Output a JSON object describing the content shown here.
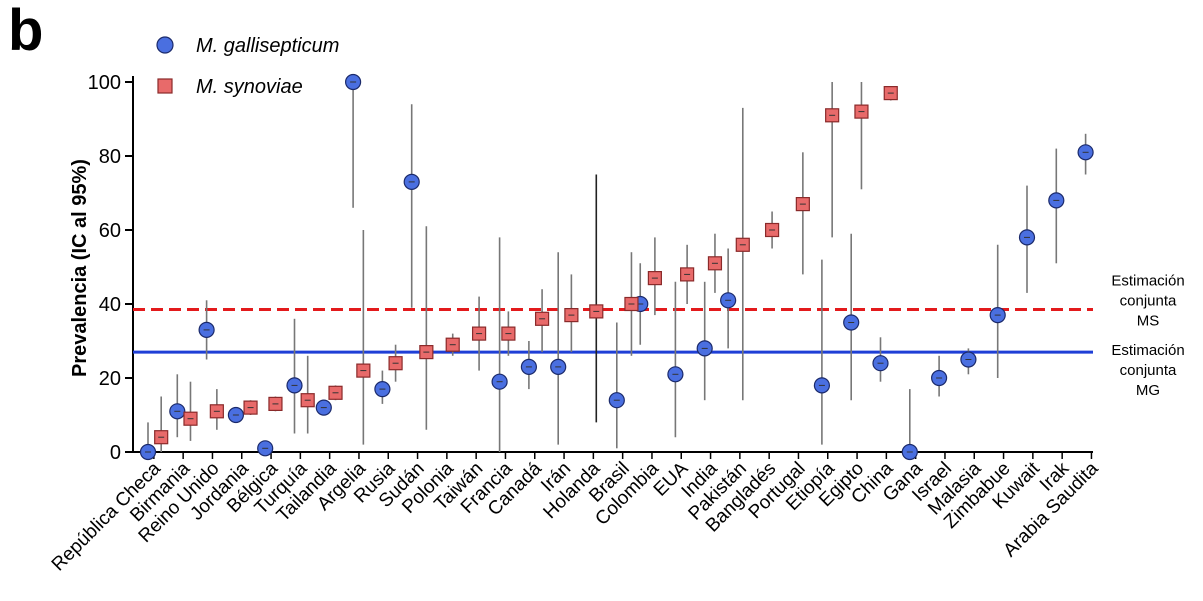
{
  "panel_label": "b",
  "chart_data": {
    "type": "scatter",
    "ylabel": "Prevalencia (IC al 95%)",
    "xlabel": "",
    "ylim": [
      0,
      100
    ],
    "yticks": [
      0,
      20,
      40,
      60,
      80,
      100
    ],
    "categories": [
      "República Checa",
      "Birmania",
      "Reino Unido",
      "Jordania",
      "Bélgica",
      "Turquía",
      "Tailandia",
      "Argelia",
      "Rusia",
      "Sudán",
      "Polonia",
      "Taiwán",
      "Francia",
      "Canadá",
      "Irán",
      "Holanda",
      "Brasil",
      "Colombia",
      "EUA",
      "India",
      "Pakistán",
      "Bangladés",
      "Portugal",
      "Etiopía",
      "Egipto",
      "China",
      "Gana",
      "Israel",
      "Malasia",
      "Zimbabue",
      "Kuwait",
      "Irak",
      "Arabia Saudita"
    ],
    "legend": {
      "position": "top-left"
    },
    "series": [
      {
        "name": "M. gallisepticum",
        "marker": "circle",
        "color": "#4a6fe0",
        "points": [
          {
            "cat": 0,
            "x": 0.0,
            "y": 0,
            "lo": 0,
            "hi": 8
          },
          {
            "cat": 1,
            "x": 0.0,
            "y": 11,
            "lo": 4,
            "hi": 21
          },
          {
            "cat": 2,
            "x": 0.0,
            "y": 33,
            "lo": 25,
            "hi": 41
          },
          {
            "cat": 3,
            "x": 0.0,
            "y": 10,
            "lo": 8,
            "hi": 12
          },
          {
            "cat": 4,
            "x": 0.0,
            "y": 1,
            "lo": 0,
            "hi": 2
          },
          {
            "cat": 5,
            "x": 0.0,
            "y": 18,
            "lo": 5,
            "hi": 36
          },
          {
            "cat": 6,
            "x": 0.0,
            "y": 12,
            "lo": 10,
            "hi": 14
          },
          {
            "cat": 7,
            "x": 0.0,
            "y": 100,
            "lo": 66,
            "hi": 100
          },
          {
            "cat": 8,
            "x": 0.0,
            "y": 17,
            "lo": 13,
            "hi": 22
          },
          {
            "cat": 9,
            "x": 0.0,
            "y": 73,
            "lo": 39,
            "hi": 94
          },
          {
            "cat": 12,
            "x": 0.0,
            "y": 19,
            "lo": 0,
            "hi": 58
          },
          {
            "cat": 13,
            "x": 0.0,
            "y": 23,
            "lo": 17,
            "hi": 30
          },
          {
            "cat": 14,
            "x": 0.0,
            "y": 23,
            "lo": 2,
            "hi": 54
          },
          {
            "cat": 16,
            "x": 0.0,
            "y": 14,
            "lo": 1,
            "hi": 35
          },
          {
            "cat": 17,
            "x": -0.2,
            "y": 40,
            "lo": 29,
            "hi": 51
          },
          {
            "cat": 18,
            "x": 0.0,
            "y": 21,
            "lo": 4,
            "hi": 46
          },
          {
            "cat": 19,
            "x": 0.0,
            "y": 28,
            "lo": 14,
            "hi": 46
          },
          {
            "cat": 20,
            "x": -0.2,
            "y": 41,
            "lo": 28,
            "hi": 55
          },
          {
            "cat": 23,
            "x": 0.0,
            "y": 18,
            "lo": 2,
            "hi": 52
          },
          {
            "cat": 24,
            "x": 0.0,
            "y": 35,
            "lo": 14,
            "hi": 59
          },
          {
            "cat": 25,
            "x": 0.0,
            "y": 24,
            "lo": 19,
            "hi": 31
          },
          {
            "cat": 26,
            "x": 0.0,
            "y": 0,
            "lo": 0,
            "hi": 17
          },
          {
            "cat": 27,
            "x": 0.0,
            "y": 20,
            "lo": 15,
            "hi": 26
          },
          {
            "cat": 28,
            "x": 0.0,
            "y": 25,
            "lo": 21,
            "hi": 28
          },
          {
            "cat": 29,
            "x": 0.0,
            "y": 37,
            "lo": 20,
            "hi": 56
          },
          {
            "cat": 30,
            "x": 0.0,
            "y": 58,
            "lo": 43,
            "hi": 72
          },
          {
            "cat": 31,
            "x": 0.0,
            "y": 68,
            "lo": 51,
            "hi": 82
          },
          {
            "cat": 32,
            "x": 0.0,
            "y": 81,
            "lo": 75,
            "hi": 86
          }
        ]
      },
      {
        "name": "M. synoviae",
        "marker": "square",
        "color": "#e86a6a",
        "points": [
          {
            "cat": 0,
            "x": 0.45,
            "y": 4,
            "lo": 0,
            "hi": 15
          },
          {
            "cat": 1,
            "x": 0.45,
            "y": 9,
            "lo": 3,
            "hi": 19
          },
          {
            "cat": 2,
            "x": 0.35,
            "y": 11,
            "lo": 6,
            "hi": 17
          },
          {
            "cat": 3,
            "x": 0.5,
            "y": 12,
            "lo": 10,
            "hi": 14
          },
          {
            "cat": 4,
            "x": 0.35,
            "y": 13,
            "lo": 11,
            "hi": 15
          },
          {
            "cat": 5,
            "x": 0.45,
            "y": 14,
            "lo": 5,
            "hi": 26
          },
          {
            "cat": 6,
            "x": 0.4,
            "y": 16,
            "lo": 14,
            "hi": 18
          },
          {
            "cat": 7,
            "x": 0.35,
            "y": 22,
            "lo": 2,
            "hi": 60
          },
          {
            "cat": 8,
            "x": 0.45,
            "y": 24,
            "lo": 19,
            "hi": 29
          },
          {
            "cat": 9,
            "x": 0.5,
            "y": 27,
            "lo": 6,
            "hi": 61
          },
          {
            "cat": 10,
            "x": 0.4,
            "y": 29,
            "lo": 26,
            "hi": 32
          },
          {
            "cat": 11,
            "x": 0.3,
            "y": 32,
            "lo": 22,
            "hi": 42
          },
          {
            "cat": 12,
            "x": 0.3,
            "y": 32,
            "lo": 26,
            "hi": 38
          },
          {
            "cat": 13,
            "x": 0.45,
            "y": 36,
            "lo": 27,
            "hi": 44
          },
          {
            "cat": 14,
            "x": 0.45,
            "y": 37,
            "lo": 27,
            "hi": 48
          },
          {
            "cat": 15,
            "x": 0.3,
            "y": 38,
            "lo": 8,
            "hi": 75
          },
          {
            "cat": 16,
            "x": 0.5,
            "y": 40,
            "lo": 26,
            "hi": 54
          },
          {
            "cat": 17,
            "x": 0.3,
            "y": 47,
            "lo": 37,
            "hi": 58
          },
          {
            "cat": 18,
            "x": 0.4,
            "y": 48,
            "lo": 40,
            "hi": 56
          },
          {
            "cat": 19,
            "x": 0.35,
            "y": 51,
            "lo": 43,
            "hi": 59
          },
          {
            "cat": 20,
            "x": 0.3,
            "y": 56,
            "lo": 14,
            "hi": 93
          },
          {
            "cat": 21,
            "x": 0.3,
            "y": 60,
            "lo": 55,
            "hi": 65
          },
          {
            "cat": 22,
            "x": 0.35,
            "y": 67,
            "lo": 48,
            "hi": 81
          },
          {
            "cat": 23,
            "x": 0.35,
            "y": 91,
            "lo": 58,
            "hi": 100
          },
          {
            "cat": 24,
            "x": 0.35,
            "y": 92,
            "lo": 71,
            "hi": 100
          },
          {
            "cat": 25,
            "x": 0.35,
            "y": 97,
            "lo": 95,
            "hi": 98
          }
        ]
      }
    ],
    "reference_lines": [
      {
        "label_lines": [
          "Estimación",
          "conjunta",
          "MS"
        ],
        "y": 38.5,
        "style": "dashed",
        "color": "#e31a1c"
      },
      {
        "label_lines": [
          "Estimación",
          "conjunta",
          "MG"
        ],
        "y": 27,
        "style": "solid",
        "color": "#1f3fd6"
      }
    ]
  }
}
